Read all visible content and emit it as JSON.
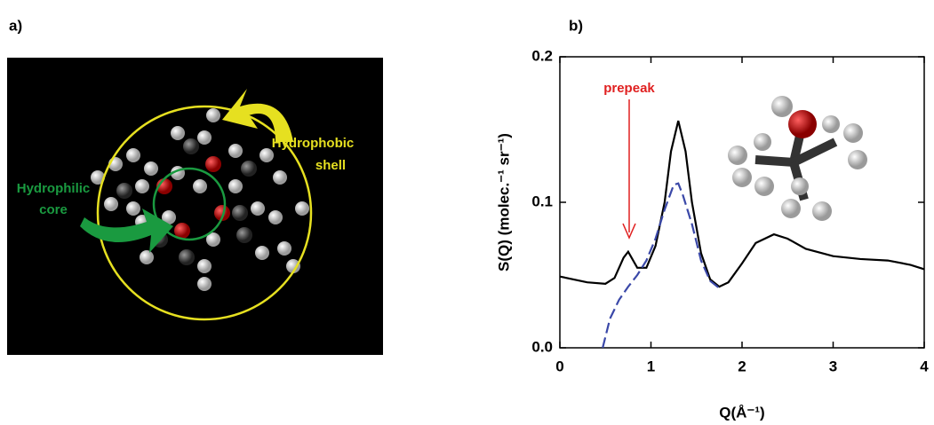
{
  "panel_a": {
    "label": "a)",
    "shell_label": [
      "Hydrophobic",
      "shell"
    ],
    "core_label": [
      "Hydrophilic",
      "core"
    ]
  },
  "chart_data": {
    "type": "line",
    "panel_label": "b)",
    "x_label": "Q(Å⁻¹)",
    "y_label": "S(Q) (molec.⁻¹ sr⁻¹)",
    "annotation": "prepeak",
    "xlim": [
      0,
      4
    ],
    "xticks": [
      0,
      1,
      2,
      3,
      4
    ],
    "ylim": [
      0,
      0.2
    ],
    "yticks": [
      {
        "value": 0,
        "label": "0.0"
      },
      {
        "value": 0.1,
        "label": "0.1"
      },
      {
        "value": 0.2,
        "label": "0.2"
      }
    ],
    "series": [
      {
        "color": "#000000",
        "dashed": false,
        "x": [
          0,
          0.3,
          0.5,
          0.6,
          0.7,
          0.75,
          0.85,
          0.95,
          1.05,
          1.15,
          1.22,
          1.3,
          1.38,
          1.45,
          1.55,
          1.65,
          1.75,
          1.85,
          2.0,
          2.15,
          2.35,
          2.5,
          2.7,
          3.0,
          3.3,
          3.6,
          3.85,
          4.0
        ],
        "values": [
          0.049,
          0.045,
          0.044,
          0.048,
          0.062,
          0.066,
          0.055,
          0.055,
          0.07,
          0.1,
          0.135,
          0.156,
          0.135,
          0.1,
          0.065,
          0.047,
          0.042,
          0.045,
          0.058,
          0.072,
          0.078,
          0.075,
          0.068,
          0.063,
          0.061,
          0.06,
          0.057,
          0.054
        ]
      },
      {
        "color": "#3a48a8",
        "dashed": true,
        "x": [
          0.47,
          0.55,
          0.65,
          0.75,
          0.85,
          0.95,
          1.05,
          1.15,
          1.25,
          1.3,
          1.35,
          1.45,
          1.55,
          1.65,
          1.75
        ],
        "values": [
          0,
          0.02,
          0.033,
          0.042,
          0.05,
          0.06,
          0.075,
          0.095,
          0.112,
          0.113,
          0.105,
          0.085,
          0.06,
          0.046,
          0.041
        ]
      }
    ]
  }
}
